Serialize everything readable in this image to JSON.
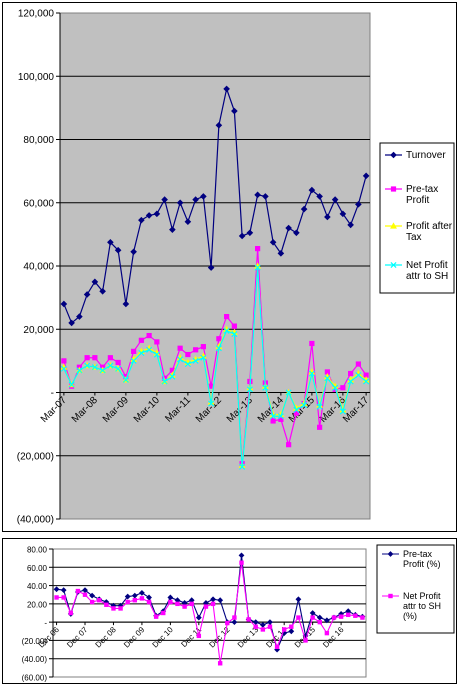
{
  "chart_data": [
    {
      "type": "line",
      "plot_background": "#c0c0c0",
      "ylim": [
        -40000,
        120000
      ],
      "yticks": [
        -40000,
        -20000,
        0,
        20000,
        40000,
        60000,
        80000,
        100000,
        120000
      ],
      "ytick_labels": [
        "(40,000)",
        "(20,000)",
        "-",
        "20,000",
        "40,000",
        "60,000",
        "80,000",
        "100,000",
        "120,000"
      ],
      "grid": true,
      "legend_position": "right",
      "x_count": 40,
      "x_ticks": [
        {
          "index": 0,
          "label": "Mar-07"
        },
        {
          "index": 4,
          "label": "Mar-08"
        },
        {
          "index": 8,
          "label": "Mar-09"
        },
        {
          "index": 12,
          "label": "Mar-10"
        },
        {
          "index": 16,
          "label": "Mar-11"
        },
        {
          "index": 20,
          "label": "Mar-12"
        },
        {
          "index": 24,
          "label": "Mar-13"
        },
        {
          "index": 28,
          "label": "Mar-14"
        },
        {
          "index": 32,
          "label": "Mar-15"
        },
        {
          "index": 36,
          "label": "Mar-16"
        },
        {
          "index": 39,
          "label": "Mar-17"
        }
      ],
      "series": [
        {
          "name": "Turnover",
          "color": "#000080",
          "marker": "diamond",
          "values": [
            28000,
            22000,
            24000,
            31000,
            35000,
            32000,
            47500,
            45000,
            28000,
            44500,
            54500,
            56000,
            56500,
            61000,
            51500,
            60000,
            54000,
            61000,
            62000,
            39500,
            84500,
            96000,
            89000,
            49500,
            50500,
            62500,
            62000,
            47500,
            44000,
            52000,
            50500,
            58000,
            64000,
            62000,
            55500,
            61000,
            56500,
            53000,
            59500,
            68500
          ]
        },
        {
          "name": "Pre-tax Profit",
          "color": "#ff00ff",
          "marker": "square",
          "values": [
            10000,
            2000,
            8000,
            11000,
            11000,
            8000,
            11000,
            9500,
            5000,
            13000,
            16500,
            18000,
            16000,
            4500,
            7000,
            14000,
            12000,
            13500,
            14500,
            2000,
            17000,
            24000,
            21000,
            -22500,
            3500,
            45500,
            3000,
            -9000,
            -8500,
            -16500,
            -6500,
            -3500,
            15500,
            -11000,
            6500,
            1000,
            1500,
            6000,
            9000,
            5500
          ]
        },
        {
          "name": "Profit after Tax",
          "color": "#ffff00",
          "marker": "triangle",
          "values": [
            8000,
            2500,
            7000,
            8500,
            8000,
            7000,
            8500,
            7500,
            4000,
            10500,
            13000,
            14000,
            12500,
            3500,
            5500,
            11000,
            9500,
            10500,
            11500,
            -3000,
            14500,
            20000,
            19000,
            -23000,
            1500,
            40000,
            2000,
            -7000,
            -7000,
            0,
            -5000,
            -3500,
            6500,
            -4000,
            5000,
            2000,
            -5500,
            4000,
            6000,
            4000
          ]
        },
        {
          "name": "Net Profit attr to SH",
          "color": "#00ffff",
          "marker": "x",
          "values": [
            7500,
            2500,
            7000,
            8500,
            8000,
            7000,
            8500,
            7500,
            4000,
            10000,
            12500,
            13500,
            12000,
            3500,
            5000,
            10500,
            9000,
            10000,
            11000,
            -3500,
            14000,
            19500,
            18500,
            -23500,
            1000,
            39500,
            1500,
            -7500,
            -7500,
            0,
            -5500,
            -4000,
            6000,
            -4500,
            4500,
            1500,
            -6000,
            3500,
            5500,
            3500
          ]
        }
      ],
      "legend_labels": [
        [
          "Turnover"
        ],
        [
          "Pre-tax",
          "Profit"
        ],
        [
          "Profit after",
          "Tax"
        ],
        [
          "Net Profit",
          "attr to SH"
        ]
      ]
    },
    {
      "type": "line",
      "plot_background": "#ffffff",
      "ylim": [
        -60,
        80
      ],
      "yticks": [
        -60,
        -40,
        -20,
        0,
        20,
        40,
        60,
        80
      ],
      "ytick_labels": [
        "(60.00)",
        "(40.00)",
        "(20.00)",
        "-",
        "20.00",
        "40.00",
        "60.00",
        "80.00"
      ],
      "grid": true,
      "legend_position": "right",
      "x_count": 44,
      "x_ticks": [
        {
          "index": 0,
          "label": "Dec 06"
        },
        {
          "index": 4,
          "label": "Dec 07"
        },
        {
          "index": 8,
          "label": "Dec 08"
        },
        {
          "index": 12,
          "label": "Dec 09"
        },
        {
          "index": 16,
          "label": "Dec 10"
        },
        {
          "index": 20,
          "label": "Dec 11"
        },
        {
          "index": 24,
          "label": "Dec 12"
        },
        {
          "index": 28,
          "label": "Dec 13"
        },
        {
          "index": 32,
          "label": "Dec 14"
        },
        {
          "index": 36,
          "label": "Dec 15"
        },
        {
          "index": 40,
          "label": "Dec 16"
        }
      ],
      "series": [
        {
          "name": "Pre-tax Profit (%)",
          "color": "#000080",
          "marker": "diamond",
          "values": [
            36,
            35,
            9,
            33,
            35,
            29,
            25,
            22,
            18,
            18,
            28,
            29,
            32,
            27,
            7,
            12,
            27,
            24,
            21,
            24,
            5,
            21,
            25,
            24,
            0,
            0,
            73,
            3,
            0,
            -3,
            0,
            -30,
            -12,
            -10,
            25,
            -15,
            10,
            5,
            2,
            5,
            9,
            12,
            8,
            6
          ]
        },
        {
          "name": "Net Profit attr to SH (%)",
          "color": "#ff00ff",
          "marker": "square",
          "values": [
            27,
            27,
            10,
            34,
            30,
            22,
            24,
            19,
            15,
            15,
            22,
            24,
            26,
            22,
            6,
            10,
            22,
            20,
            17,
            20,
            -15,
            17,
            20,
            -45,
            -1,
            5,
            65,
            3,
            -5,
            -8,
            -5,
            -27,
            -8,
            -5,
            5,
            -20,
            5,
            0,
            -12,
            5,
            6,
            8,
            7,
            5
          ]
        }
      ],
      "legend_labels": [
        [
          "Pre-tax",
          "Profit (%)"
        ],
        [
          "Net Profit",
          "attr to SH",
          "(%)"
        ]
      ]
    }
  ]
}
